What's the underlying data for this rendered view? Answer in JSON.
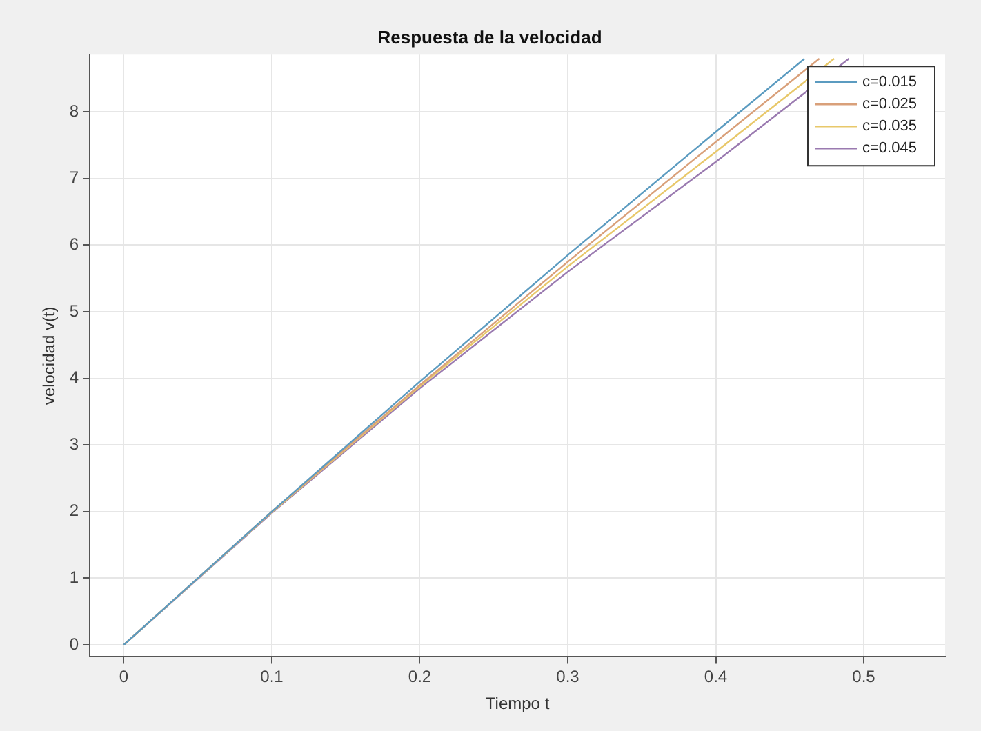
{
  "chart_data": {
    "type": "line",
    "title": "Respuesta de la velocidad",
    "xlabel": "Tiempo t",
    "ylabel": "velocidad v(t)",
    "series": [
      {
        "name": "c=0.015",
        "color": "#5b9bc0",
        "x": [
          0,
          0.1,
          0.2,
          0.3,
          0.4,
          0.46
        ],
        "values": [
          0,
          2.0,
          3.95,
          5.85,
          7.7,
          8.8
        ]
      },
      {
        "name": "c=0.025",
        "color": "#d9a07a",
        "x": [
          0,
          0.1,
          0.2,
          0.3,
          0.4,
          0.47
        ],
        "values": [
          0,
          2.0,
          3.9,
          5.75,
          7.55,
          8.8
        ]
      },
      {
        "name": "c=0.035",
        "color": "#e8c86a",
        "x": [
          0,
          0.1,
          0.2,
          0.3,
          0.4,
          0.48
        ],
        "values": [
          0,
          1.99,
          3.88,
          5.68,
          7.4,
          8.8
        ]
      },
      {
        "name": "c=0.045",
        "color": "#9a7ab0",
        "x": [
          0,
          0.1,
          0.2,
          0.3,
          0.4,
          0.49
        ],
        "values": [
          0,
          1.98,
          3.85,
          5.6,
          7.25,
          8.8
        ]
      }
    ],
    "xlim": [
      -0.023,
      0.555
    ],
    "xticks": [
      0,
      0.1,
      0.2,
      0.3,
      0.4,
      0.5
    ],
    "ylim": [
      -0.18,
      8.86
    ],
    "yticks": [
      0,
      1,
      2,
      3,
      4,
      5,
      6,
      7,
      8
    ],
    "grid": true,
    "legend": "top right",
    "marker": "none",
    "line_style": "solid"
  }
}
